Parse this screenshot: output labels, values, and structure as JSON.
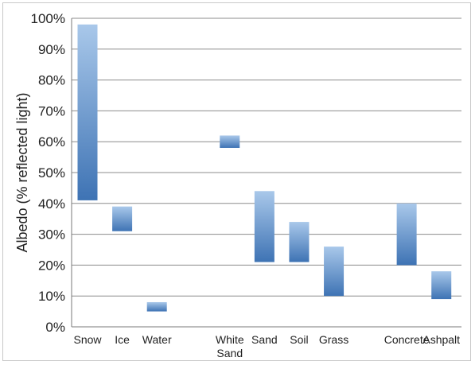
{
  "chart_data": {
    "type": "bar",
    "subtype": "floating-range",
    "title": "",
    "xlabel": "",
    "ylabel": "Albedo (% reflected light)",
    "ylim": [
      0,
      100
    ],
    "y_ticks": [
      "0%",
      "10%",
      "20%",
      "30%",
      "40%",
      "50%",
      "60%",
      "70%",
      "80%",
      "90%",
      "100%"
    ],
    "grid": true,
    "categories": [
      {
        "label": "Snow",
        "slot": 0
      },
      {
        "label": "Ice",
        "slot": 1
      },
      {
        "label": "Water",
        "slot": 2
      },
      {
        "label": "White Sand",
        "slot": 4.1
      },
      {
        "label": "Sand",
        "slot": 5.1
      },
      {
        "label": "Soil",
        "slot": 6.1
      },
      {
        "label": "Grass",
        "slot": 7.1
      },
      {
        "label": "Concrete",
        "slot": 9.2
      },
      {
        "label": "Ashpalt",
        "slot": 10.2
      }
    ],
    "ranges": [
      {
        "low": 41,
        "high": 98
      },
      {
        "low": 31,
        "high": 39
      },
      {
        "low": 5,
        "high": 8
      },
      {
        "low": 58,
        "high": 62
      },
      {
        "low": 21,
        "high": 44
      },
      {
        "low": 21,
        "high": 34
      },
      {
        "low": 10,
        "high": 26
      },
      {
        "low": 20,
        "high": 40
      },
      {
        "low": 9,
        "high": 18
      }
    ],
    "colors": {
      "bar_top": "#a9c8ea",
      "bar_bottom": "#3e73b4",
      "grid": "#8c8c8c",
      "axis": "#7a7a7a"
    }
  }
}
